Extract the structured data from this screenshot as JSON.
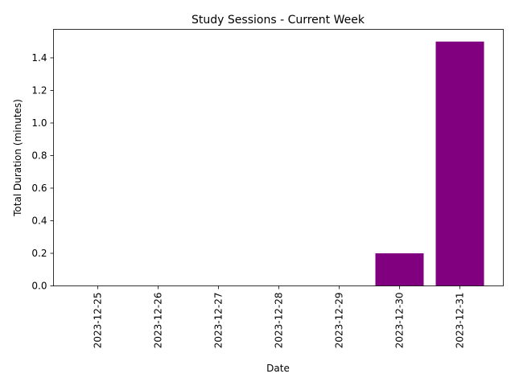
{
  "chart_data": {
    "type": "bar",
    "title": "Study Sessions - Current Week",
    "xlabel": "Date",
    "ylabel": "Total Duration (minutes)",
    "categories": [
      "2023-12-25",
      "2023-12-26",
      "2023-12-27",
      "2023-12-28",
      "2023-12-29",
      "2023-12-30",
      "2023-12-31"
    ],
    "values": [
      0,
      0,
      0,
      0,
      0,
      0.2,
      1.5
    ],
    "ylim": [
      0,
      1.575
    ],
    "yticks": [
      "0.0",
      "0.2",
      "0.4",
      "0.6",
      "0.8",
      "1.0",
      "1.2",
      "1.4"
    ],
    "bar_color": "#800080",
    "grid": false,
    "legend": "none"
  }
}
